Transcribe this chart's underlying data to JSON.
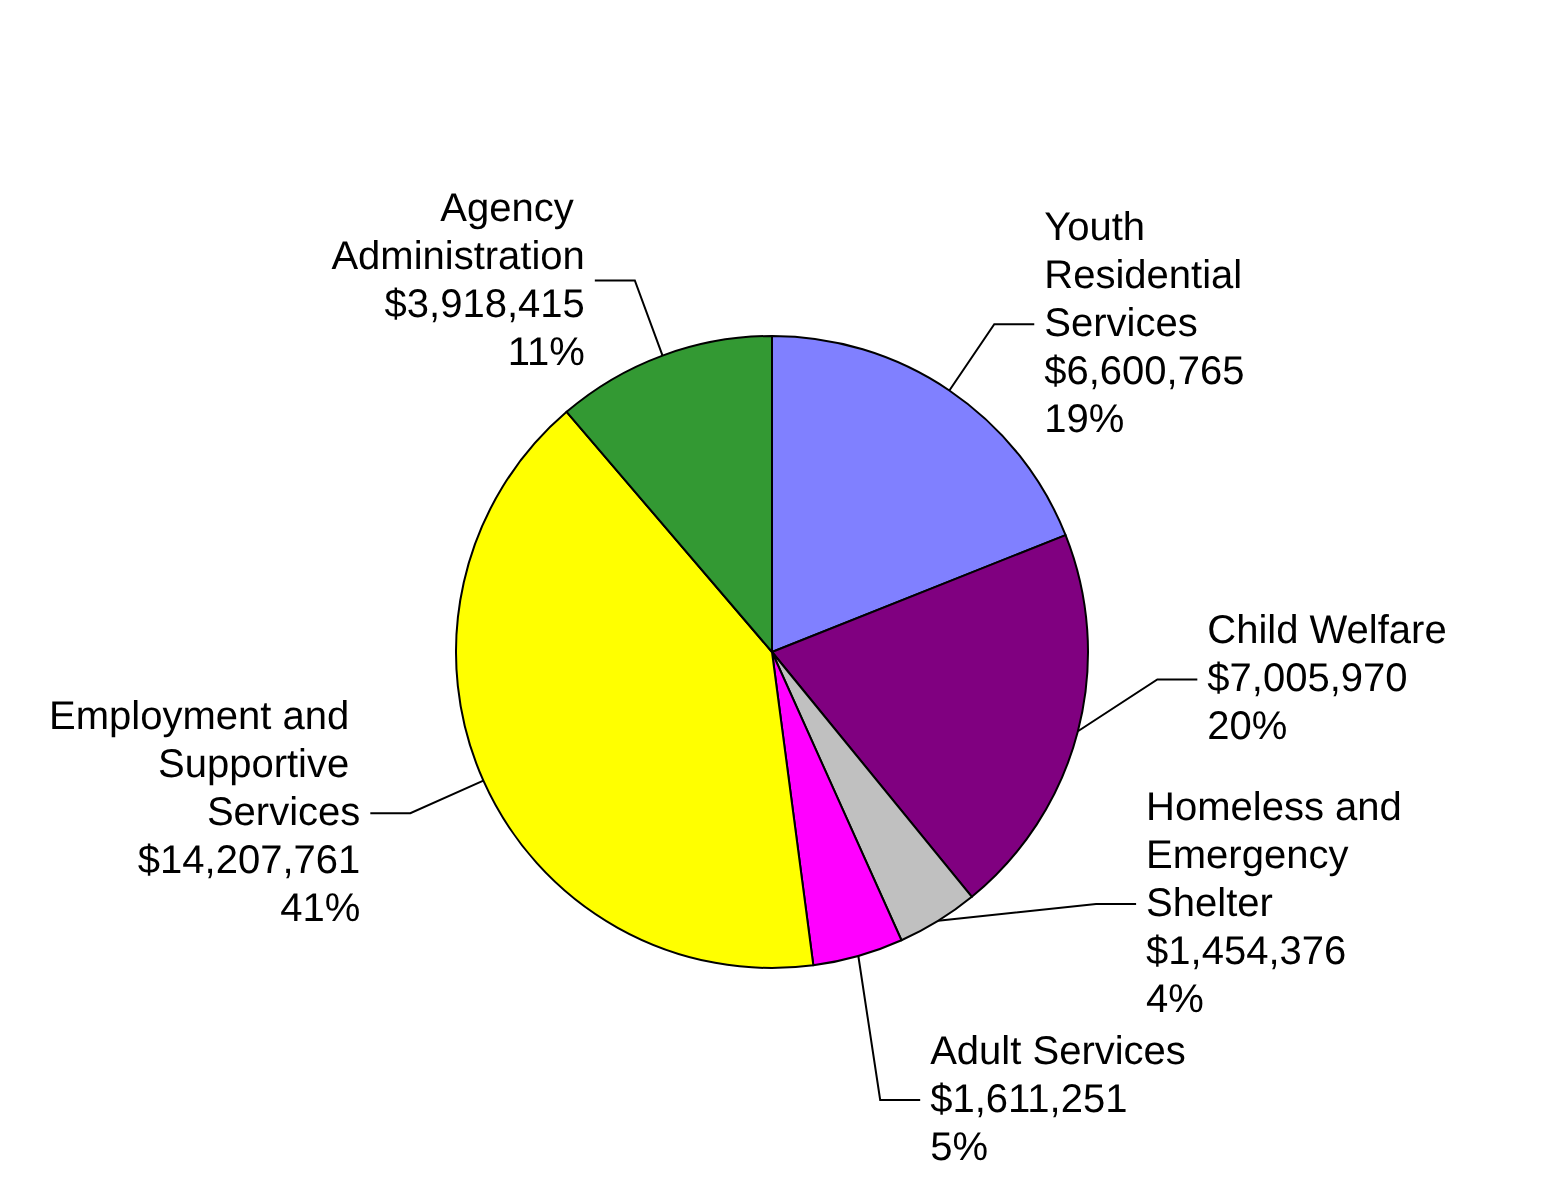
{
  "chart_data": {
    "type": "pie",
    "categories": [
      "Youth Residential Services",
      "Child Welfare",
      "Homeless and Emergency Shelter",
      "Adult Services",
      "Employment and Supportive Services",
      "Agency Administration"
    ],
    "values": [
      6600765,
      7005970,
      1454376,
      1611251,
      14207761,
      3918415
    ],
    "colors": [
      "#8080ff",
      "#800080",
      "#c0c0c0",
      "#ff00ff",
      "#ffff00",
      "#339933"
    ],
    "value_labels": [
      "$6,600,765\n19%",
      "$7,005,970\n20%",
      "$1,454,376\n4%",
      "$1,611,251\n5%",
      "$14,207,761\n41%",
      "$3,918,415\n11%"
    ],
    "legend": false
  }
}
